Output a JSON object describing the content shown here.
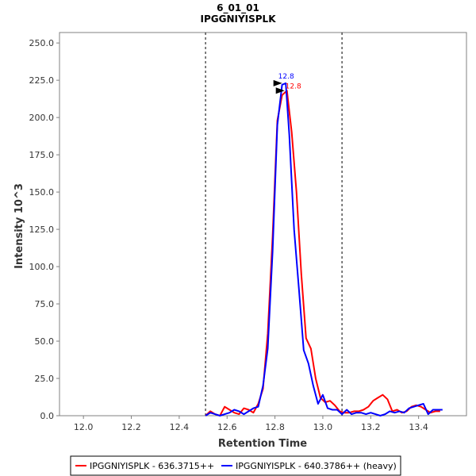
{
  "chart_data": {
    "type": "line",
    "title": "6_01_01",
    "subtitle": "IPGGNIYISPLK",
    "xlabel": "Retention Time",
    "ylabel": "Intensity 10^3",
    "xlim": [
      11.9,
      13.6
    ],
    "ylim": [
      0,
      257
    ],
    "x_ticks": [
      "12.0",
      "12.2",
      "12.4",
      "12.6",
      "12.8",
      "13.0",
      "13.2",
      "13.4"
    ],
    "y_ticks": [
      "0.0",
      "25.0",
      "50.0",
      "75.0",
      "100.0",
      "125.0",
      "150.0",
      "175.0",
      "200.0",
      "225.0",
      "250.0"
    ],
    "boundaries": [
      12.51,
      13.08
    ],
    "grid": false,
    "legend_position": "bottom",
    "series": [
      {
        "name": "IPGGNIYISPLK - 636.3715++",
        "color": "#ff0000",
        "peak_label": "12.8",
        "peak_rt": 12.85,
        "peak_value": 218,
        "x": [
          12.51,
          12.53,
          12.55,
          12.57,
          12.59,
          12.61,
          12.63,
          12.65,
          12.67,
          12.69,
          12.71,
          12.73,
          12.75,
          12.77,
          12.79,
          12.81,
          12.83,
          12.85,
          12.87,
          12.89,
          12.91,
          12.93,
          12.95,
          12.97,
          12.99,
          13.01,
          13.03,
          13.05,
          13.07,
          13.09,
          13.11,
          13.13,
          13.15,
          13.17,
          13.19,
          13.21,
          13.23,
          13.25,
          13.27,
          13.29,
          13.31,
          13.33,
          13.35,
          13.37,
          13.39,
          13.41,
          13.43,
          13.45,
          13.47,
          13.49
        ],
        "values": [
          0,
          3,
          1,
          0,
          6,
          4,
          2,
          1,
          5,
          4,
          2,
          8,
          18,
          55,
          120,
          198,
          215,
          218,
          190,
          150,
          95,
          52,
          45,
          25,
          12,
          9,
          10,
          7,
          3,
          2,
          2,
          3,
          3,
          4,
          6,
          10,
          12,
          14,
          11,
          3,
          4,
          2,
          3,
          6,
          7,
          6,
          4,
          2,
          3,
          3
        ]
      },
      {
        "name": "IPGGNIYISPLK - 640.3786++ (heavy)",
        "color": "#0000ff",
        "peak_label": "12.8",
        "peak_rt": 12.84,
        "peak_value": 223,
        "x": [
          12.51,
          12.53,
          12.55,
          12.57,
          12.59,
          12.61,
          12.63,
          12.65,
          12.67,
          12.69,
          12.71,
          12.73,
          12.75,
          12.77,
          12.79,
          12.81,
          12.83,
          12.845,
          12.86,
          12.88,
          12.9,
          12.92,
          12.94,
          12.96,
          12.98,
          13.0,
          13.02,
          13.04,
          13.06,
          13.08,
          13.1,
          13.12,
          13.14,
          13.16,
          13.18,
          13.2,
          13.22,
          13.24,
          13.26,
          13.28,
          13.3,
          13.32,
          13.34,
          13.36,
          13.38,
          13.4,
          13.42,
          13.44,
          13.46,
          13.48,
          13.5
        ],
        "values": [
          0,
          2,
          1,
          0,
          1,
          2,
          4,
          3,
          1,
          3,
          5,
          6,
          20,
          45,
          110,
          195,
          222,
          223,
          188,
          125,
          85,
          44,
          35,
          20,
          8,
          14,
          5,
          4,
          4,
          1,
          4,
          1,
          2,
          2,
          1,
          2,
          1,
          0,
          1,
          3,
          2,
          3,
          2,
          5,
          6,
          7,
          8,
          1,
          4,
          4,
          4
        ]
      }
    ]
  }
}
